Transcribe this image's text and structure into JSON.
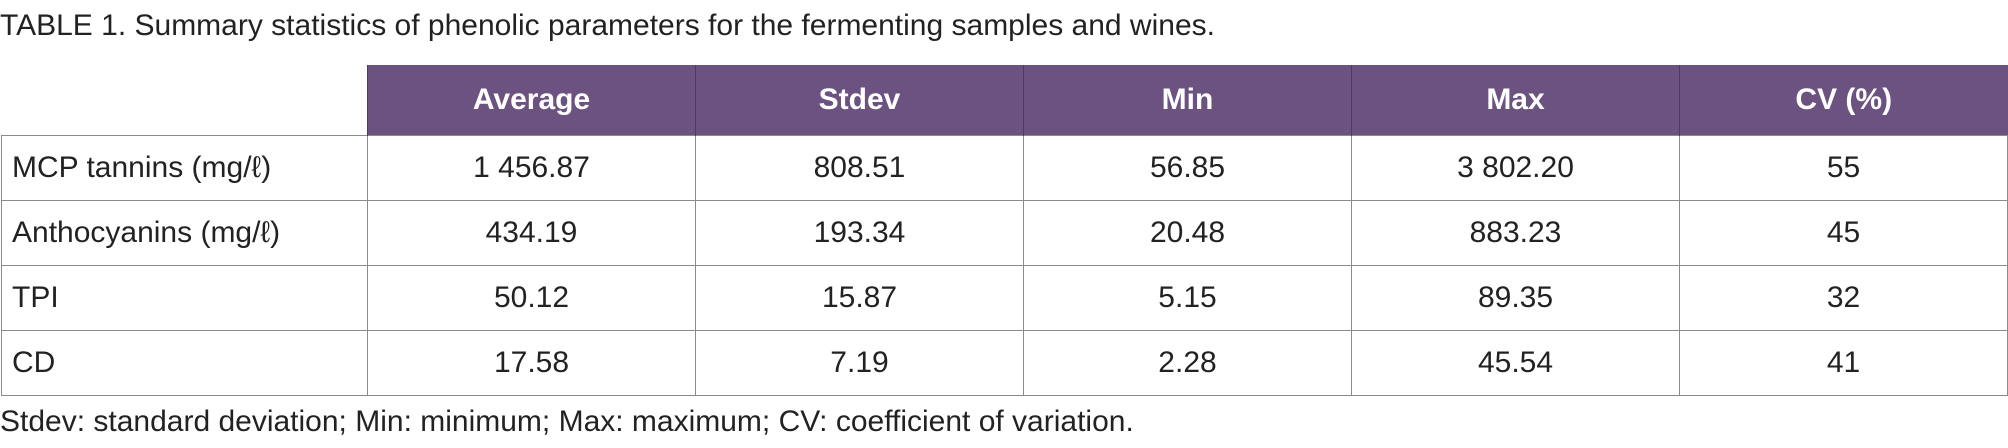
{
  "caption": "TABLE 1. Summary statistics of phenolic parameters for the fermenting samples and wines.",
  "table": {
    "headers": [
      "Average",
      "Stdev",
      "Min",
      "Max",
      "CV (%)"
    ],
    "rows": [
      {
        "label": "MCP tannins (mg/ℓ)",
        "values": [
          "1 456.87",
          "808.51",
          "56.85",
          "3 802.20",
          "55"
        ]
      },
      {
        "label": "Anthocyanins (mg/ℓ)",
        "values": [
          "434.19",
          "193.34",
          "20.48",
          "883.23",
          "45"
        ]
      },
      {
        "label": "TPI",
        "values": [
          "50.12",
          "15.87",
          "5.15",
          "89.35",
          "32"
        ]
      },
      {
        "label": "CD",
        "values": [
          "17.58",
          "7.19",
          "2.28",
          "45.54",
          "41"
        ]
      }
    ]
  },
  "footnote": "Stdev: standard deviation; Min: minimum; Max: maximum; CV: coefficient of variation.",
  "colors": {
    "header_bg": "#6b5280",
    "header_text": "#ffffff",
    "border": "#8a8a8a"
  }
}
